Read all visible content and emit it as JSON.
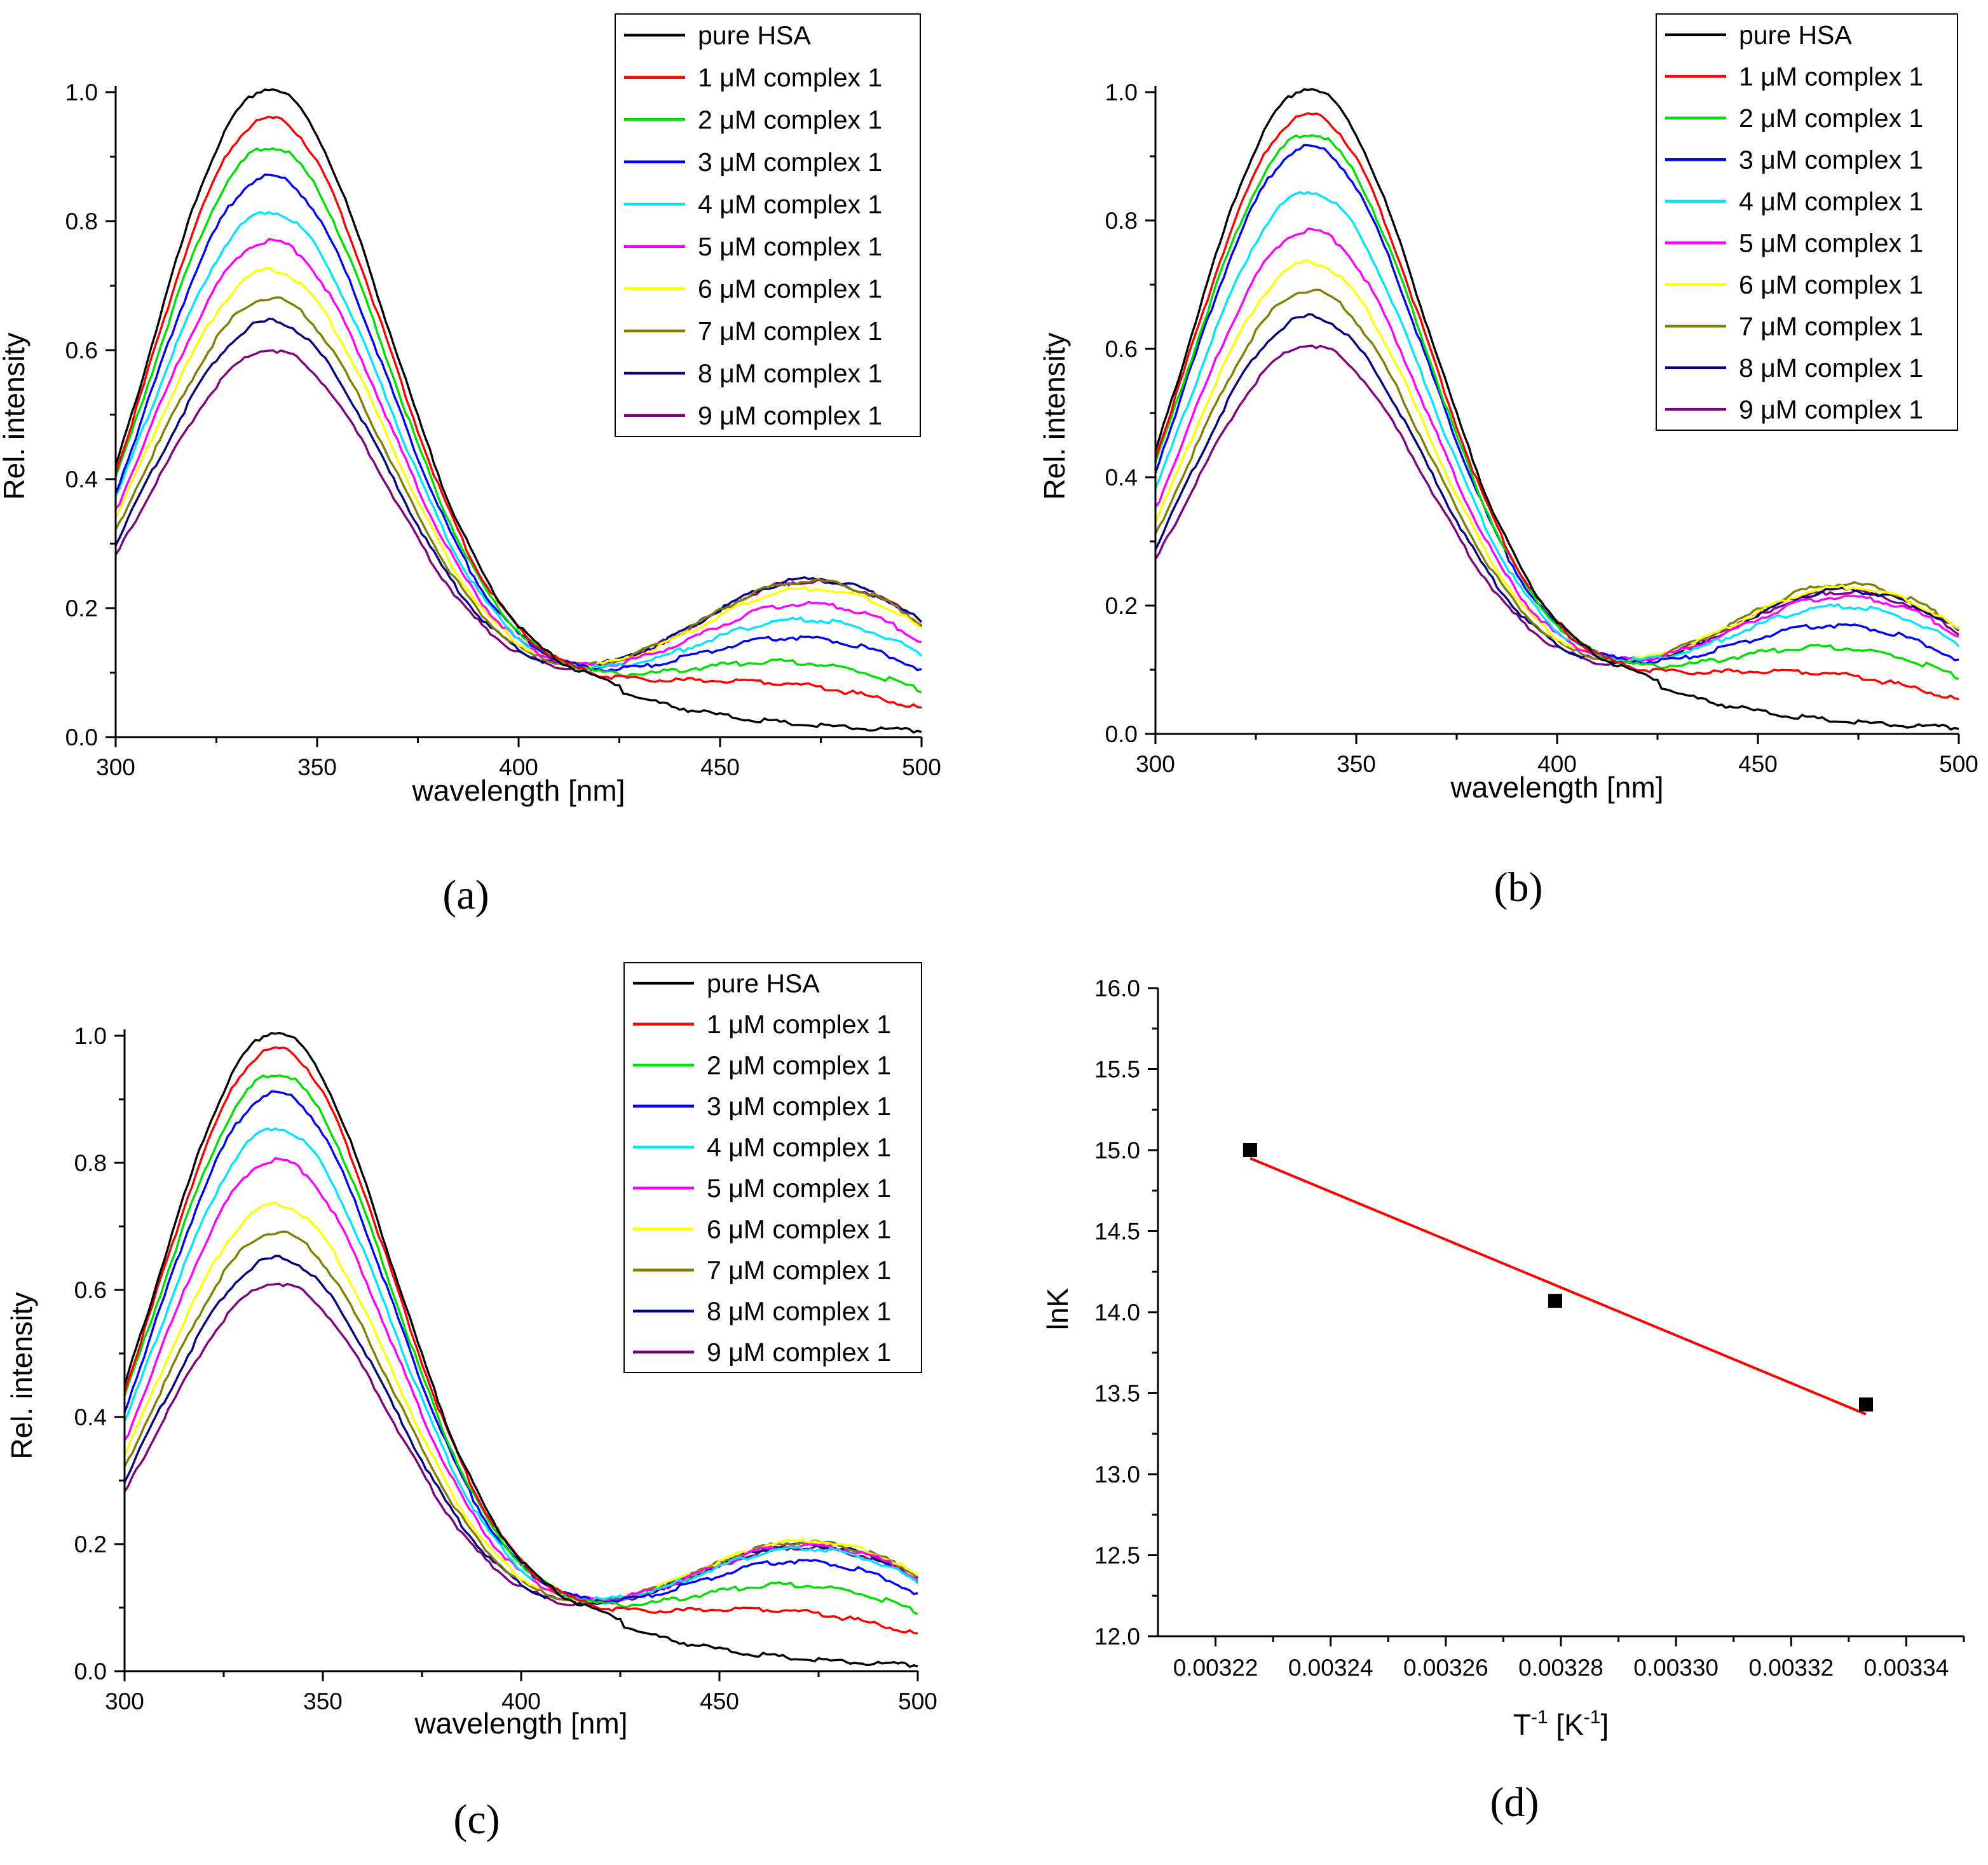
{
  "panel_labels": [
    "(a)",
    "(b)",
    "(c)",
    "(d)"
  ],
  "chart_data": [
    {
      "type": "line",
      "panel": "(a)",
      "xlabel": "wavelength [nm]",
      "ylabel": "Rel. intensity",
      "xlim": [
        300,
        500
      ],
      "ylim": [
        0.0,
        1.0
      ],
      "xticks": [
        300,
        350,
        400,
        450,
        500
      ],
      "yticks": [
        0.0,
        0.2,
        0.4,
        0.6,
        0.8,
        1.0
      ],
      "legend_position": "top-right",
      "series": [
        {
          "name": "pure HSA",
          "color": "#000000",
          "start": 0.42,
          "peak": 1.0,
          "valley": 0.068,
          "band": 0.0,
          "end": 0.01
        },
        {
          "name": "1 μM complex 1",
          "color": "#ff0000",
          "start": 0.41,
          "peak": 0.955,
          "valley": 0.068,
          "band": 0.048,
          "end": 0.035
        },
        {
          "name": "2 μM complex 1",
          "color": "#00e000",
          "start": 0.4,
          "peak": 0.91,
          "valley": 0.068,
          "band": 0.083,
          "end": 0.063
        },
        {
          "name": "3 μM complex 1",
          "color": "#0000ff",
          "start": 0.38,
          "peak": 0.865,
          "valley": 0.068,
          "band": 0.122,
          "end": 0.095
        },
        {
          "name": "4 μM complex 1",
          "color": "#00e5ff",
          "start": 0.37,
          "peak": 0.81,
          "valley": 0.068,
          "band": 0.15,
          "end": 0.118
        },
        {
          "name": "5 μM complex 1",
          "color": "#ff00ff",
          "start": 0.35,
          "peak": 0.765,
          "valley": 0.068,
          "band": 0.175,
          "end": 0.138
        },
        {
          "name": "6 μM complex 1",
          "color": "#ffff00",
          "start": 0.34,
          "peak": 0.72,
          "valley": 0.068,
          "band": 0.198,
          "end": 0.158
        },
        {
          "name": "7 μM complex 1",
          "color": "#808000",
          "start": 0.32,
          "peak": 0.675,
          "valley": 0.068,
          "band": 0.21,
          "end": 0.165
        },
        {
          "name": "8 μM complex 1",
          "color": "#000080",
          "start": 0.3,
          "peak": 0.64,
          "valley": 0.068,
          "band": 0.212,
          "end": 0.168
        },
        {
          "name": "9 μM complex 1",
          "color": "#800080",
          "start": 0.28,
          "peak": 0.595,
          "valley": 0.068,
          "band": 0.21,
          "end": 0.165
        }
      ]
    },
    {
      "type": "line",
      "panel": "(b)",
      "xlabel": "wavelength [nm]",
      "ylabel": "Rel. intensity",
      "xlim": [
        300,
        500
      ],
      "ylim": [
        0.0,
        1.0
      ],
      "xticks": [
        300,
        350,
        400,
        450,
        500
      ],
      "yticks": [
        0.0,
        0.2,
        0.4,
        0.6,
        0.8,
        1.0
      ],
      "legend_position": "top-right",
      "series": [
        {
          "name": "pure HSA",
          "color": "#000000",
          "start": 0.44,
          "peak": 1.0,
          "valley": 0.072,
          "band": 0.0,
          "end": 0.008
        },
        {
          "name": "1 μM complex 1",
          "color": "#ff0000",
          "start": 0.43,
          "peak": 0.96,
          "valley": 0.072,
          "band": 0.058,
          "end": 0.043
        },
        {
          "name": "2 μM complex 1",
          "color": "#00e000",
          "start": 0.42,
          "peak": 0.93,
          "valley": 0.072,
          "band": 0.1,
          "end": 0.078
        },
        {
          "name": "3 μM complex 1",
          "color": "#0000ff",
          "start": 0.41,
          "peak": 0.91,
          "valley": 0.072,
          "band": 0.135,
          "end": 0.105
        },
        {
          "name": "4 μM complex 1",
          "color": "#00e5ff",
          "start": 0.38,
          "peak": 0.84,
          "valley": 0.072,
          "band": 0.165,
          "end": 0.128
        },
        {
          "name": "5 μM complex 1",
          "color": "#ff00ff",
          "start": 0.35,
          "peak": 0.78,
          "valley": 0.072,
          "band": 0.18,
          "end": 0.142
        },
        {
          "name": "6 μM complex 1",
          "color": "#ffff00",
          "start": 0.33,
          "peak": 0.73,
          "valley": 0.072,
          "band": 0.195,
          "end": 0.152
        },
        {
          "name": "7 μM complex 1",
          "color": "#808000",
          "start": 0.31,
          "peak": 0.685,
          "valley": 0.072,
          "band": 0.2,
          "end": 0.155
        },
        {
          "name": "8 μM complex 1",
          "color": "#000080",
          "start": 0.29,
          "peak": 0.645,
          "valley": 0.072,
          "band": 0.19,
          "end": 0.15
        },
        {
          "name": "9 μM complex 1",
          "color": "#800080",
          "start": 0.27,
          "peak": 0.6,
          "valley": 0.072,
          "band": 0.188,
          "end": 0.148
        }
      ]
    },
    {
      "type": "line",
      "panel": "(c)",
      "xlabel": "wavelength [nm]",
      "ylabel": "Rel. intensity",
      "xlim": [
        300,
        500
      ],
      "ylim": [
        0.0,
        1.0
      ],
      "xticks": [
        300,
        350,
        400,
        450,
        500
      ],
      "yticks": [
        0.0,
        0.2,
        0.4,
        0.6,
        0.8,
        1.0
      ],
      "legend_position": "top-right",
      "series": [
        {
          "name": "pure HSA",
          "color": "#000000",
          "start": 0.45,
          "peak": 1.0,
          "valley": 0.07,
          "band": 0.0,
          "end": 0.008
        },
        {
          "name": "1 μM complex 1",
          "color": "#ff0000",
          "start": 0.44,
          "peak": 0.975,
          "valley": 0.07,
          "band": 0.06,
          "end": 0.048
        },
        {
          "name": "2 μM complex 1",
          "color": "#00e000",
          "start": 0.43,
          "peak": 0.935,
          "valley": 0.07,
          "band": 0.102,
          "end": 0.083
        },
        {
          "name": "3 μM complex 1",
          "color": "#0000ff",
          "start": 0.41,
          "peak": 0.905,
          "valley": 0.07,
          "band": 0.14,
          "end": 0.112
        },
        {
          "name": "4 μM complex 1",
          "color": "#00e5ff",
          "start": 0.39,
          "peak": 0.85,
          "valley": 0.07,
          "band": 0.16,
          "end": 0.13
        },
        {
          "name": "5 μM complex 1",
          "color": "#ff00ff",
          "start": 0.36,
          "peak": 0.8,
          "valley": 0.07,
          "band": 0.165,
          "end": 0.136
        },
        {
          "name": "6 μM complex 1",
          "color": "#ffff00",
          "start": 0.34,
          "peak": 0.73,
          "valley": 0.07,
          "band": 0.172,
          "end": 0.14
        },
        {
          "name": "7 μM complex 1",
          "color": "#808000",
          "start": 0.32,
          "peak": 0.685,
          "valley": 0.07,
          "band": 0.17,
          "end": 0.14
        },
        {
          "name": "8 μM complex 1",
          "color": "#000080",
          "start": 0.3,
          "peak": 0.645,
          "valley": 0.07,
          "band": 0.165,
          "end": 0.136
        },
        {
          "name": "9 μM complex 1",
          "color": "#800080",
          "start": 0.28,
          "peak": 0.605,
          "valley": 0.07,
          "band": 0.162,
          "end": 0.134
        }
      ]
    },
    {
      "type": "scatter",
      "panel": "(d)",
      "xlabel": "T",
      "xlabel_sup1": "-1",
      "xlabel_mid": " [K",
      "xlabel_sup2": "-1",
      "xlabel_end": "]",
      "ylabel": "lnK",
      "xlim": [
        0.00321,
        0.00335
      ],
      "ylim": [
        12.0,
        16.0
      ],
      "xticks": [
        "0.00322",
        "0.00324",
        "0.00326",
        "0.00328",
        "0.00330",
        "0.00332",
        "0.00334"
      ],
      "yticks": [
        "12.0",
        "12.5",
        "13.0",
        "13.5",
        "14.0",
        "14.5",
        "15.0",
        "15.5",
        "16.0"
      ],
      "points": [
        {
          "x": 0.003226,
          "y": 15.0
        },
        {
          "x": 0.003279,
          "y": 14.07
        },
        {
          "x": 0.003333,
          "y": 13.43
        }
      ],
      "fit_line": {
        "color": "#ff0000",
        "x": [
          0.003226,
          0.003333
        ],
        "y": [
          14.95,
          13.37
        ]
      },
      "marker_color": "#000000"
    }
  ]
}
